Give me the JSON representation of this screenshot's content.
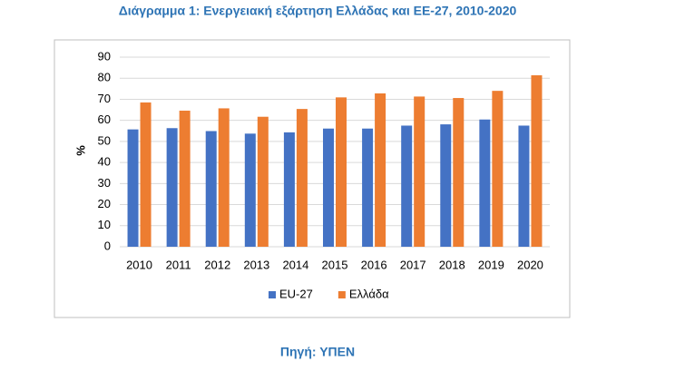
{
  "chart_data": {
    "type": "bar",
    "title": "Διάγραμμα 1: Ενεργειακή εξάρτηση Ελλάδας και ΕΕ-27, 2010-2020",
    "y_label": "%",
    "source": "Πηγή: ΥΠΕΝ",
    "categories": [
      "2010",
      "2011",
      "2012",
      "2013",
      "2014",
      "2015",
      "2016",
      "2017",
      "2018",
      "2019",
      "2020"
    ],
    "series": [
      {
        "name": "EU-27",
        "color": "#4472c4",
        "values": [
          55.7,
          56.3,
          54.9,
          53.7,
          54.3,
          56.1,
          56.1,
          57.5,
          58.1,
          60.4,
          57.5
        ]
      },
      {
        "name": "Ελλάδα",
        "color": "#ed7d31",
        "values": [
          68.5,
          64.6,
          65.7,
          61.7,
          65.4,
          70.9,
          72.8,
          71.3,
          70.6,
          74.0,
          81.4
        ]
      }
    ],
    "ylim": [
      0,
      90
    ],
    "yticks": [
      0,
      10,
      20,
      30,
      40,
      50,
      60,
      70,
      80,
      90
    ],
    "grid": true,
    "legend": "bottom"
  }
}
